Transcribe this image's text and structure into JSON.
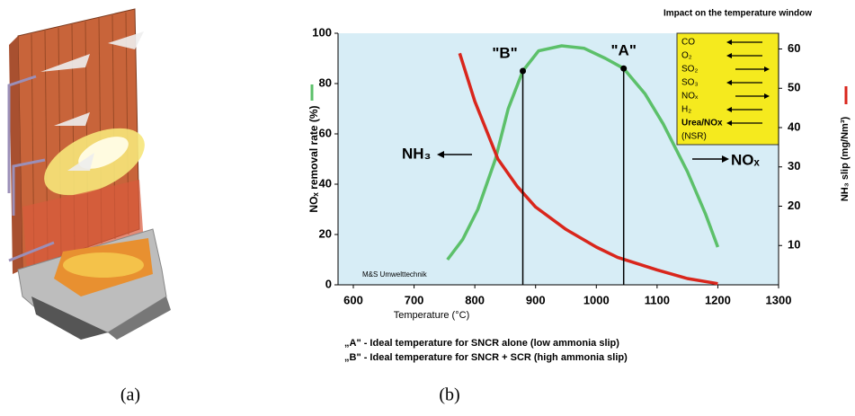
{
  "chart_data": {
    "type": "line",
    "figure_title": "Impact on the temperature window",
    "xlabel": "Temperature (°C)",
    "ylabel": "NOₓ removal rate (%)",
    "y2label": "NH₃ slip (mg/Nm³)",
    "xlim": [
      600,
      1300
    ],
    "xticks": [
      600,
      700,
      800,
      900,
      1000,
      1100,
      1200,
      1300
    ],
    "ylim": [
      0,
      100
    ],
    "yticks": [
      0,
      20,
      40,
      60,
      80,
      100
    ],
    "y2lim": [
      0,
      64
    ],
    "y2ticks": [
      10,
      20,
      30,
      40,
      50,
      60
    ],
    "background": "#d7edf6",
    "series": [
      {
        "color": "#5cc06a",
        "axis": "y",
        "x": [
          755,
          780,
          805,
          834,
          855,
          879,
          905,
          943,
          980,
          1015,
          1045,
          1080,
          1110,
          1150,
          1180,
          1200
        ],
        "values": [
          10,
          18,
          30,
          50,
          70,
          85,
          93,
          95,
          94,
          90,
          86,
          76,
          64,
          45,
          28,
          15
        ]
      },
      {
        "color": "#d9261c",
        "axis": "y2",
        "x": [
          775,
          800,
          838,
          870,
          900,
          950,
          1000,
          1035,
          1100,
          1150,
          1200
        ],
        "values": [
          58.9,
          46.7,
          32,
          25,
          19.8,
          14.1,
          9.6,
          7,
          3.8,
          1.6,
          0.3
        ]
      }
    ],
    "annotations": [
      {
        "text": "\"B\"",
        "x": 879,
        "y": 85
      },
      {
        "text": "\"A\"",
        "x": 1045,
        "y": 86
      }
    ],
    "arrow_labels": [
      "NH₃",
      "NOₓ"
    ],
    "credit": "M&S Umwelttechnik",
    "legend_box": {
      "color": "#f5ea1e",
      "items": [
        {
          "text": "CO",
          "direction": "left"
        },
        {
          "text": "O₂",
          "direction": "left"
        },
        {
          "text": "SO₂",
          "direction": "right"
        },
        {
          "text": "SO₃",
          "direction": "left"
        },
        {
          "text": "NOₓ",
          "direction": "right"
        },
        {
          "text": "H₂",
          "direction": "left"
        },
        {
          "text": "Urea/NOx",
          "direction": "left"
        },
        {
          "text": "(NSR)",
          "direction": null
        }
      ]
    },
    "notes": [
      "„A\" - Ideal temperature for SNCR alone (low ammonia slip)",
      "„B\" - Ideal temperature for SNCR + SCR (high ammonia slip)"
    ],
    "panel_labels": [
      "(a)",
      "(b)"
    ]
  }
}
